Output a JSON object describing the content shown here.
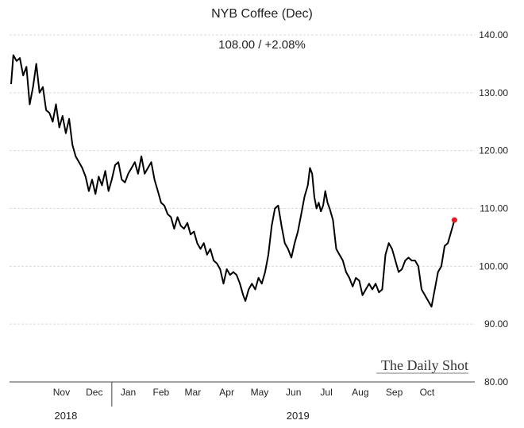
{
  "chart_data": {
    "type": "line",
    "title": "NYB Coffee (Dec)",
    "subtitle": "108.00  /  +2.08%",
    "ylim": [
      80,
      140
    ],
    "y_ticks": [
      "140.00",
      "130.00",
      "120.00",
      "110.00",
      "100.00",
      "90.00",
      "80.00"
    ],
    "xlim": [
      "2018-10-01",
      "2019-11-01"
    ],
    "month_labels": [
      {
        "label": "Nov",
        "date": "2018-11-16"
      },
      {
        "label": "Dec",
        "date": "2018-12-16"
      },
      {
        "label": "Jan",
        "date": "2019-01-16"
      },
      {
        "label": "Feb",
        "date": "2019-02-15"
      },
      {
        "label": "Mar",
        "date": "2019-03-16"
      },
      {
        "label": "Apr",
        "date": "2019-04-16"
      },
      {
        "label": "May",
        "date": "2019-05-16"
      },
      {
        "label": "Jun",
        "date": "2019-06-16"
      },
      {
        "label": "Jul",
        "date": "2019-07-16"
      },
      {
        "label": "Aug",
        "date": "2019-08-16"
      },
      {
        "label": "Sep",
        "date": "2019-09-16"
      },
      {
        "label": "Oct",
        "date": "2019-10-16"
      }
    ],
    "year_labels": [
      {
        "label": "2018",
        "date": "2018-11-20"
      },
      {
        "label": "2019",
        "date": "2019-06-20"
      }
    ],
    "year_divider": "2019-01-01",
    "grid": true,
    "series": [
      {
        "color": "#000000",
        "points": [
          [
            "2018-10-01",
            131.5
          ],
          [
            "2018-10-03",
            136.5
          ],
          [
            "2018-10-06",
            135.5
          ],
          [
            "2018-10-09",
            136
          ],
          [
            "2018-10-12",
            133
          ],
          [
            "2018-10-15",
            134.5
          ],
          [
            "2018-10-18",
            128
          ],
          [
            "2018-10-21",
            131
          ],
          [
            "2018-10-24",
            135
          ],
          [
            "2018-10-27",
            130
          ],
          [
            "2018-10-30",
            131
          ],
          [
            "2018-11-02",
            127
          ],
          [
            "2018-11-05",
            126.5
          ],
          [
            "2018-11-08",
            125
          ],
          [
            "2018-11-11",
            128
          ],
          [
            "2018-11-14",
            124
          ],
          [
            "2018-11-17",
            126
          ],
          [
            "2018-11-20",
            123
          ],
          [
            "2018-11-23",
            125.5
          ],
          [
            "2018-11-26",
            121
          ],
          [
            "2018-11-29",
            119
          ],
          [
            "2018-12-02",
            118
          ],
          [
            "2018-12-05",
            117
          ],
          [
            "2018-12-08",
            115.5
          ],
          [
            "2018-12-11",
            113
          ],
          [
            "2018-12-14",
            115
          ],
          [
            "2018-12-17",
            112.5
          ],
          [
            "2018-12-20",
            115.5
          ],
          [
            "2018-12-23",
            114
          ],
          [
            "2018-12-26",
            116.5
          ],
          [
            "2018-12-29",
            113
          ],
          [
            "2019-01-01",
            115
          ],
          [
            "2019-01-04",
            117.5
          ],
          [
            "2019-01-07",
            118
          ],
          [
            "2019-01-10",
            115
          ],
          [
            "2019-01-13",
            114.5
          ],
          [
            "2019-01-16",
            116
          ],
          [
            "2019-01-19",
            117
          ],
          [
            "2019-01-22",
            118
          ],
          [
            "2019-01-25",
            116
          ],
          [
            "2019-01-28",
            119
          ],
          [
            "2019-01-31",
            116
          ],
          [
            "2019-02-03",
            117
          ],
          [
            "2019-02-06",
            118
          ],
          [
            "2019-02-09",
            115
          ],
          [
            "2019-02-12",
            113
          ],
          [
            "2019-02-15",
            111
          ],
          [
            "2019-02-18",
            110.5
          ],
          [
            "2019-02-21",
            109
          ],
          [
            "2019-02-24",
            108.5
          ],
          [
            "2019-02-27",
            106.5
          ],
          [
            "2019-03-02",
            108.5
          ],
          [
            "2019-03-05",
            107
          ],
          [
            "2019-03-08",
            106.5
          ],
          [
            "2019-03-11",
            107.5
          ],
          [
            "2019-03-14",
            105.5
          ],
          [
            "2019-03-17",
            106
          ],
          [
            "2019-03-20",
            104
          ],
          [
            "2019-03-23",
            103
          ],
          [
            "2019-03-26",
            104
          ],
          [
            "2019-03-29",
            102
          ],
          [
            "2019-04-01",
            103
          ],
          [
            "2019-04-04",
            101
          ],
          [
            "2019-04-07",
            100.5
          ],
          [
            "2019-04-10",
            99.5
          ],
          [
            "2019-04-13",
            97
          ],
          [
            "2019-04-16",
            99.5
          ],
          [
            "2019-04-19",
            98.5
          ],
          [
            "2019-04-22",
            99
          ],
          [
            "2019-04-25",
            98.5
          ],
          [
            "2019-04-28",
            97
          ],
          [
            "2019-05-01",
            95
          ],
          [
            "2019-05-03",
            94
          ],
          [
            "2019-05-06",
            96
          ],
          [
            "2019-05-09",
            97
          ],
          [
            "2019-05-12",
            96
          ],
          [
            "2019-05-15",
            98
          ],
          [
            "2019-05-18",
            97
          ],
          [
            "2019-05-21",
            99
          ],
          [
            "2019-05-24",
            102
          ],
          [
            "2019-05-27",
            107
          ],
          [
            "2019-05-30",
            110
          ],
          [
            "2019-06-02",
            110.5
          ],
          [
            "2019-06-05",
            107
          ],
          [
            "2019-06-08",
            104
          ],
          [
            "2019-06-11",
            103
          ],
          [
            "2019-06-14",
            101.5
          ],
          [
            "2019-06-17",
            104
          ],
          [
            "2019-06-20",
            106
          ],
          [
            "2019-06-23",
            109
          ],
          [
            "2019-06-26",
            112
          ],
          [
            "2019-06-29",
            114
          ],
          [
            "2019-07-01",
            117
          ],
          [
            "2019-07-03",
            116
          ],
          [
            "2019-07-05",
            112
          ],
          [
            "2019-07-07",
            110
          ],
          [
            "2019-07-09",
            111
          ],
          [
            "2019-07-11",
            109.5
          ],
          [
            "2019-07-13",
            110.5
          ],
          [
            "2019-07-15",
            113
          ],
          [
            "2019-07-17",
            111
          ],
          [
            "2019-07-19",
            110
          ],
          [
            "2019-07-22",
            108
          ],
          [
            "2019-07-25",
            103
          ],
          [
            "2019-07-28",
            102
          ],
          [
            "2019-07-31",
            101
          ],
          [
            "2019-08-03",
            99
          ],
          [
            "2019-08-06",
            98
          ],
          [
            "2019-08-09",
            96.5
          ],
          [
            "2019-08-12",
            98
          ],
          [
            "2019-08-15",
            97.5
          ],
          [
            "2019-08-18",
            95
          ],
          [
            "2019-08-21",
            96
          ],
          [
            "2019-08-24",
            97
          ],
          [
            "2019-08-27",
            96
          ],
          [
            "2019-08-30",
            97
          ],
          [
            "2019-09-02",
            95.5
          ],
          [
            "2019-09-05",
            96
          ],
          [
            "2019-09-08",
            102
          ],
          [
            "2019-09-11",
            104
          ],
          [
            "2019-09-14",
            103
          ],
          [
            "2019-09-17",
            101
          ],
          [
            "2019-09-20",
            99
          ],
          [
            "2019-09-23",
            99.5
          ],
          [
            "2019-09-26",
            101
          ],
          [
            "2019-09-29",
            101.5
          ],
          [
            "2019-10-02",
            101
          ],
          [
            "2019-10-05",
            101
          ],
          [
            "2019-10-08",
            100
          ],
          [
            "2019-10-11",
            96
          ],
          [
            "2019-10-14",
            95
          ],
          [
            "2019-10-17",
            94
          ],
          [
            "2019-10-20",
            93
          ],
          [
            "2019-10-23",
            96
          ],
          [
            "2019-10-26",
            99
          ],
          [
            "2019-10-29",
            100
          ],
          [
            "2019-11-01",
            103.5
          ],
          [
            "2019-11-04",
            104
          ],
          [
            "2019-11-07",
            106
          ],
          [
            "2019-11-10",
            108
          ]
        ]
      }
    ],
    "last_point": {
      "date": "2019-11-10",
      "value": 108,
      "color": "#e8191b"
    },
    "watermark": "The Daily Shot"
  }
}
